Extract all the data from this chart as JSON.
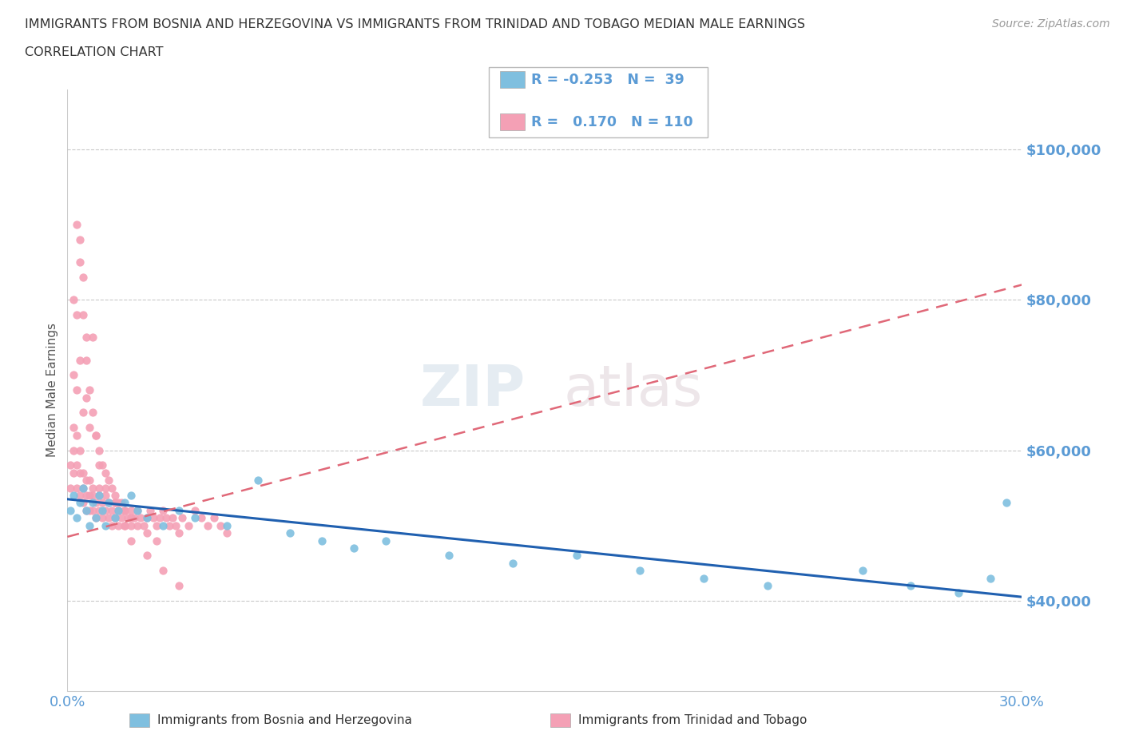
{
  "title_line1": "IMMIGRANTS FROM BOSNIA AND HERZEGOVINA VS IMMIGRANTS FROM TRINIDAD AND TOBAGO MEDIAN MALE EARNINGS",
  "title_line2": "CORRELATION CHART",
  "source_text": "Source: ZipAtlas.com",
  "ylabel": "Median Male Earnings",
  "xmin": 0.0,
  "xmax": 0.3,
  "ymin": 28000,
  "ymax": 108000,
  "yticks": [
    40000,
    60000,
    80000,
    100000
  ],
  "ytick_labels": [
    "$40,000",
    "$60,000",
    "$80,000",
    "$100,000"
  ],
  "color_blue": "#7fbfdf",
  "color_pink": "#f4a0b5",
  "trendline_blue": "#2060b0",
  "trendline_pink": "#e06878",
  "legend_R_blue": "-0.253",
  "legend_N_blue": "39",
  "legend_R_pink": "0.170",
  "legend_N_pink": "110",
  "legend_label_blue": "Immigrants from Bosnia and Herzegovina",
  "legend_label_pink": "Immigrants from Trinidad and Tobago",
  "axis_color": "#5b9bd5",
  "background_color": "#ffffff",
  "blue_trend_x0": 0.0,
  "blue_trend_y0": 53500,
  "blue_trend_x1": 0.3,
  "blue_trend_y1": 40500,
  "pink_trend_x0": 0.0,
  "pink_trend_y0": 48500,
  "pink_trend_x1": 0.3,
  "pink_trend_y1": 82000,
  "blue_x": [
    0.001,
    0.002,
    0.003,
    0.004,
    0.005,
    0.006,
    0.007,
    0.008,
    0.009,
    0.01,
    0.011,
    0.012,
    0.013,
    0.015,
    0.016,
    0.018,
    0.02,
    0.022,
    0.025,
    0.03,
    0.035,
    0.04,
    0.05,
    0.06,
    0.07,
    0.08,
    0.09,
    0.1,
    0.12,
    0.14,
    0.16,
    0.18,
    0.2,
    0.22,
    0.25,
    0.265,
    0.28,
    0.29,
    0.295
  ],
  "blue_y": [
    52000,
    54000,
    51000,
    53000,
    55000,
    52000,
    50000,
    53000,
    51000,
    54000,
    52000,
    50000,
    53000,
    51000,
    52000,
    53000,
    54000,
    52000,
    51000,
    50000,
    52000,
    51000,
    50000,
    56000,
    49000,
    48000,
    47000,
    48000,
    46000,
    45000,
    46000,
    44000,
    43000,
    42000,
    44000,
    42000,
    41000,
    43000,
    53000
  ],
  "pink_x": [
    0.001,
    0.001,
    0.002,
    0.002,
    0.002,
    0.003,
    0.003,
    0.003,
    0.004,
    0.004,
    0.004,
    0.005,
    0.005,
    0.005,
    0.006,
    0.006,
    0.006,
    0.007,
    0.007,
    0.007,
    0.008,
    0.008,
    0.008,
    0.009,
    0.009,
    0.01,
    0.01,
    0.01,
    0.011,
    0.011,
    0.012,
    0.012,
    0.013,
    0.013,
    0.014,
    0.014,
    0.015,
    0.015,
    0.016,
    0.016,
    0.017,
    0.017,
    0.018,
    0.018,
    0.019,
    0.02,
    0.02,
    0.021,
    0.022,
    0.023,
    0.024,
    0.025,
    0.026,
    0.027,
    0.028,
    0.029,
    0.03,
    0.031,
    0.032,
    0.033,
    0.034,
    0.035,
    0.036,
    0.038,
    0.04,
    0.042,
    0.044,
    0.046,
    0.048,
    0.05,
    0.002,
    0.003,
    0.004,
    0.005,
    0.006,
    0.007,
    0.008,
    0.009,
    0.01,
    0.011,
    0.012,
    0.013,
    0.014,
    0.015,
    0.016,
    0.018,
    0.02,
    0.022,
    0.025,
    0.028,
    0.002,
    0.003,
    0.004,
    0.005,
    0.006,
    0.003,
    0.004,
    0.005,
    0.006,
    0.007,
    0.008,
    0.009,
    0.01,
    0.012,
    0.015,
    0.018,
    0.02,
    0.025,
    0.03,
    0.035
  ],
  "pink_y": [
    55000,
    58000,
    57000,
    60000,
    63000,
    55000,
    58000,
    62000,
    54000,
    57000,
    60000,
    55000,
    53000,
    57000,
    54000,
    52000,
    56000,
    54000,
    52000,
    56000,
    54000,
    52000,
    55000,
    53000,
    51000,
    54000,
    52000,
    55000,
    53000,
    51000,
    52000,
    54000,
    51000,
    53000,
    52000,
    50000,
    51000,
    53000,
    50000,
    52000,
    51000,
    53000,
    50000,
    52000,
    51000,
    52000,
    50000,
    51000,
    52000,
    51000,
    50000,
    51000,
    52000,
    51000,
    50000,
    51000,
    52000,
    51000,
    50000,
    51000,
    50000,
    49000,
    51000,
    50000,
    52000,
    51000,
    50000,
    51000,
    50000,
    49000,
    70000,
    68000,
    72000,
    65000,
    67000,
    63000,
    75000,
    62000,
    60000,
    58000,
    57000,
    56000,
    55000,
    54000,
    53000,
    52000,
    51000,
    50000,
    49000,
    48000,
    80000,
    78000,
    88000,
    83000,
    75000,
    90000,
    85000,
    78000,
    72000,
    68000,
    65000,
    62000,
    58000,
    55000,
    53000,
    50000,
    48000,
    46000,
    44000,
    42000
  ]
}
